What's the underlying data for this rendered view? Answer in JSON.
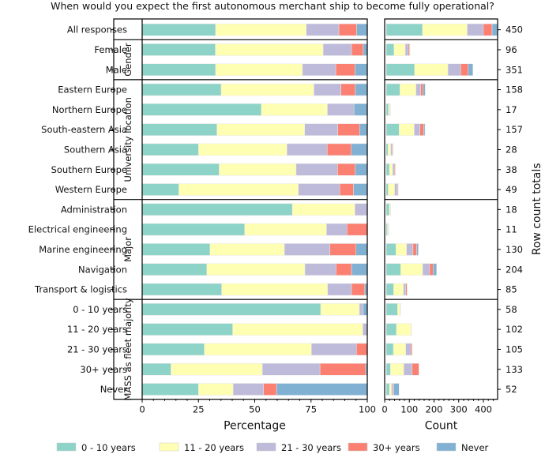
{
  "chart_data": {
    "type": "bar",
    "orientation": "horizontal-stacked",
    "title": "When would you expect the first autonomous merchant ship to become fully operational?",
    "left_panel": {
      "xlabel": "Percentage",
      "xlim": [
        0,
        100
      ],
      "xticks": [
        0,
        25,
        50,
        75,
        100
      ]
    },
    "right_panel": {
      "xlabel": "Count",
      "xlim": [
        0,
        460
      ],
      "xticks": [
        0,
        100,
        200,
        300,
        400
      ],
      "ylabel_right": "Row count totals"
    },
    "legend": {
      "placement": "bottom",
      "entries": [
        "0 - 10 years",
        "11 - 20 years",
        "21 - 30 years",
        "30+ years",
        "Never"
      ]
    },
    "colors": [
      "#8dd3c7",
      "#ffffb3",
      "#bebada",
      "#fb8072",
      "#80b1d3"
    ],
    "groups": [
      {
        "label": "",
        "rows": [
          {
            "label": "All responses",
            "total": 450,
            "pct": [
              32.6,
              40.3,
              14.5,
              7.9,
              4.7
            ]
          }
        ]
      },
      {
        "label": "Gender",
        "rows": [
          {
            "label": "Female",
            "total": 96,
            "pct": [
              32.5,
              47.9,
              12.6,
              5.2,
              1.8
            ]
          },
          {
            "label": "Male",
            "total": 351,
            "pct": [
              32.6,
              38.6,
              14.8,
              8.6,
              5.4
            ]
          }
        ]
      },
      {
        "label": "University location",
        "rows": [
          {
            "label": "Eastern Europe",
            "total": 158,
            "pct": [
              35.1,
              41.2,
              12.0,
              6.4,
              5.3
            ]
          },
          {
            "label": "Northern Europe",
            "total": 17,
            "pct": [
              52.9,
              29.4,
              11.8,
              0,
              5.9
            ]
          },
          {
            "label": "South-eastern Asia",
            "total": 157,
            "pct": [
              33.2,
              39.0,
              14.7,
              9.7,
              3.4
            ]
          },
          {
            "label": "Southern Asia",
            "total": 28,
            "pct": [
              25.0,
              39.3,
              17.9,
              10.7,
              7.1
            ]
          },
          {
            "label": "Southern Europe",
            "total": 38,
            "pct": [
              34.2,
              34.2,
              18.4,
              7.9,
              5.3
            ]
          },
          {
            "label": "Western Europe",
            "total": 49,
            "pct": [
              16.3,
              53.1,
              18.4,
              6.1,
              6.1
            ]
          }
        ]
      },
      {
        "label": "Major",
        "rows": [
          {
            "label": "Administration",
            "total": 18,
            "pct": [
              66.7,
              27.8,
              5.5,
              0,
              0
            ]
          },
          {
            "label": "Electrical engineering",
            "total": 11,
            "pct": [
              45.5,
              36.4,
              9.1,
              9.0,
              0
            ]
          },
          {
            "label": "Marine engineering",
            "total": 130,
            "pct": [
              30.1,
              33.1,
              20.2,
              11.6,
              5.0
            ]
          },
          {
            "label": "Navigation",
            "total": 204,
            "pct": [
              28.7,
              43.6,
              13.8,
              6.9,
              7.0
            ]
          },
          {
            "label": "Transport & logistics",
            "total": 85,
            "pct": [
              35.3,
              47.1,
              10.6,
              5.9,
              1.1
            ]
          }
        ]
      },
      {
        "label": "MASS as fleet majority",
        "rows": [
          {
            "label": "0 - 10 years",
            "total": 58,
            "pct": [
              79.3,
              17.2,
              1.7,
              0,
              1.8
            ]
          },
          {
            "label": "11 - 20 years",
            "total": 102,
            "pct": [
              40.2,
              57.8,
              2.0,
              0,
              0
            ]
          },
          {
            "label": "21 - 30 years",
            "total": 105,
            "pct": [
              27.6,
              47.6,
              20.0,
              4.8,
              0
            ]
          },
          {
            "label": "30+ years",
            "total": 133,
            "pct": [
              12.8,
              40.6,
              25.6,
              20.3,
              0.7
            ]
          },
          {
            "label": "Never",
            "total": 52,
            "pct": [
              25.0,
              15.4,
              13.5,
              5.8,
              40.3
            ]
          }
        ]
      }
    ]
  }
}
